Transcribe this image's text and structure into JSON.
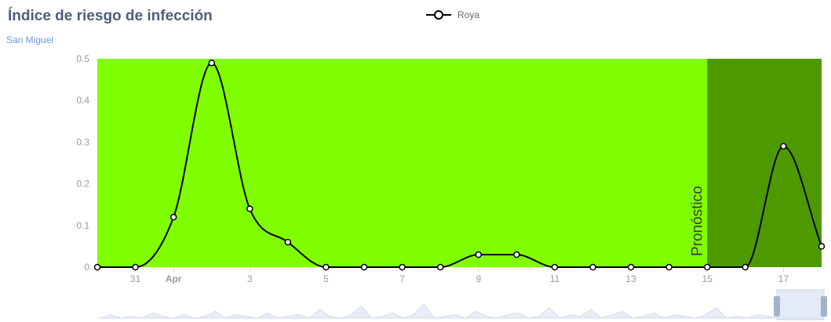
{
  "header": {
    "title": "Índice de riesgo de infección",
    "subtitle": "San Miguel"
  },
  "legend": {
    "label": "Roya"
  },
  "colors": {
    "plot_bg": "#80ff00",
    "forecast_bg": "#4c9a00",
    "line": "#000000",
    "marker_fill": "#ffffff",
    "title": "#4d5f7a",
    "subtitle": "#6f9ad8",
    "axis_text": "#999999",
    "navigator_fill": "#e8eef8"
  },
  "chart_data": {
    "type": "line",
    "series": [
      {
        "name": "Roya",
        "x": [
          "Mar 30",
          "Mar 31",
          "Apr 1",
          "Apr 2",
          "Apr 3",
          "Apr 4",
          "Apr 5",
          "Apr 6",
          "Apr 7",
          "Apr 8",
          "Apr 9",
          "Apr 10",
          "Apr 11",
          "Apr 12",
          "Apr 13",
          "Apr 14",
          "Apr 15",
          "Apr 16",
          "Apr 17",
          "Apr 18"
        ],
        "values": [
          0,
          0,
          0.12,
          0.49,
          0.14,
          0.06,
          0,
          0,
          0,
          0,
          0.03,
          0.03,
          0,
          0,
          0,
          0,
          0,
          0,
          0.29,
          0.05
        ]
      }
    ],
    "xlabel": "",
    "ylabel": "",
    "ylim": [
      0,
      0.5
    ],
    "yticks": [
      "0",
      "0.1",
      "0.2",
      "0.3",
      "0.4",
      "0.5"
    ],
    "xticks": [
      "31",
      "Apr",
      "3",
      "5",
      "7",
      "9",
      "11",
      "13",
      "15",
      "17"
    ],
    "forecast_band": {
      "from": "Apr 15",
      "to": "Apr 18",
      "label": "Pronóstico"
    },
    "legend_position": "top-center",
    "grid": false
  }
}
